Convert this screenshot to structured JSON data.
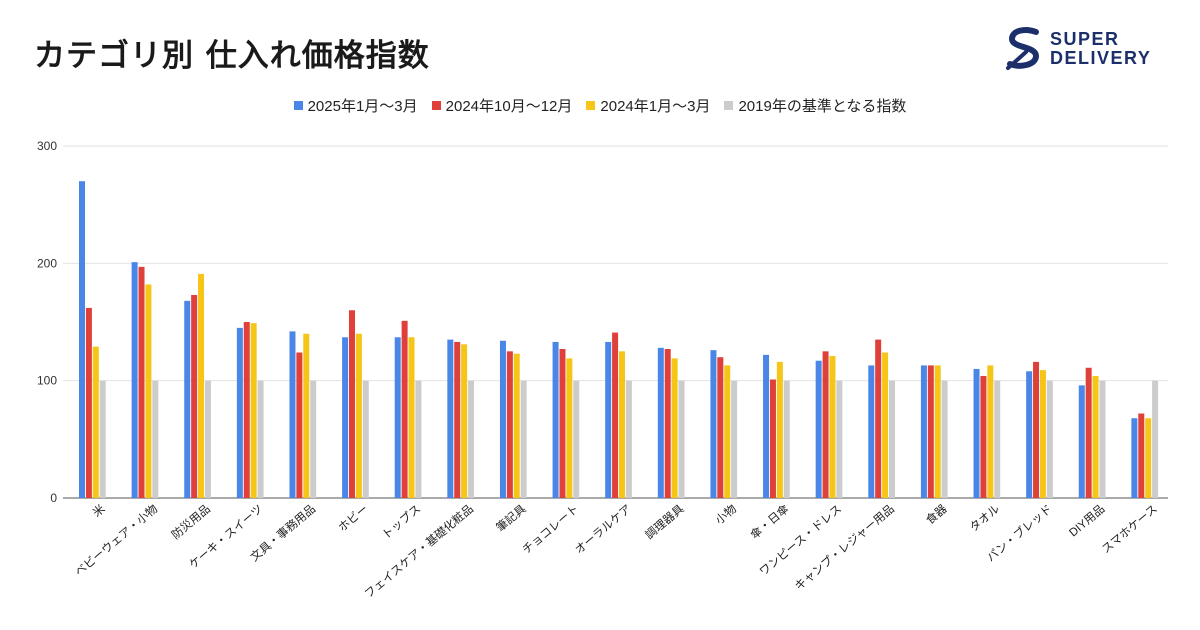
{
  "title": "カテゴリ別  仕入れ価格指数",
  "logo": {
    "line1": "SUPER",
    "line2": "DELIVERY"
  },
  "colors": [
    "#4a86e8",
    "#e0403a",
    "#f5c518",
    "#cccccc"
  ],
  "chart_data": {
    "type": "bar",
    "title": "カテゴリ別  仕入れ価格指数",
    "xlabel": "",
    "ylabel": "",
    "ylim": [
      0,
      300
    ],
    "yticks": [
      0,
      100,
      200,
      300
    ],
    "grid": true,
    "legend_position": "top-center",
    "categories": [
      "米",
      "ベビーウェア・小物",
      "防災用品",
      "ケーキ・スイーツ",
      "文具・事務用品",
      "ホビー",
      "トップス",
      "フェイスケア・基礎化粧品",
      "筆記具",
      "チョコレート",
      "オーラルケア",
      "調理器具",
      "小物",
      "傘・日傘",
      "ワンピース・ドレス",
      "キャンプ・レジャー用品",
      "食器",
      "タオル",
      "パン・ブレッド",
      "DIY用品",
      "スマホケース"
    ],
    "series": [
      {
        "name": "2025年1月～3月",
        "values": [
          270,
          201,
          168,
          145,
          142,
          137,
          137,
          135,
          134,
          133,
          133,
          128,
          126,
          122,
          117,
          113,
          113,
          110,
          108,
          96,
          68
        ]
      },
      {
        "name": "2024年10月～12月",
        "values": [
          162,
          197,
          173,
          150,
          124,
          160,
          151,
          133,
          125,
          127,
          141,
          127,
          120,
          101,
          125,
          135,
          113,
          104,
          116,
          111,
          72
        ]
      },
      {
        "name": "2024年1月～3月",
        "values": [
          129,
          182,
          191,
          149,
          140,
          140,
          137,
          131,
          123,
          119,
          125,
          119,
          113,
          116,
          121,
          124,
          113,
          113,
          109,
          104,
          68
        ]
      },
      {
        "name": "2019年の基準となる指数",
        "values": [
          100,
          100,
          100,
          100,
          100,
          100,
          100,
          100,
          100,
          100,
          100,
          100,
          100,
          100,
          100,
          100,
          100,
          100,
          100,
          100,
          100
        ]
      }
    ]
  }
}
